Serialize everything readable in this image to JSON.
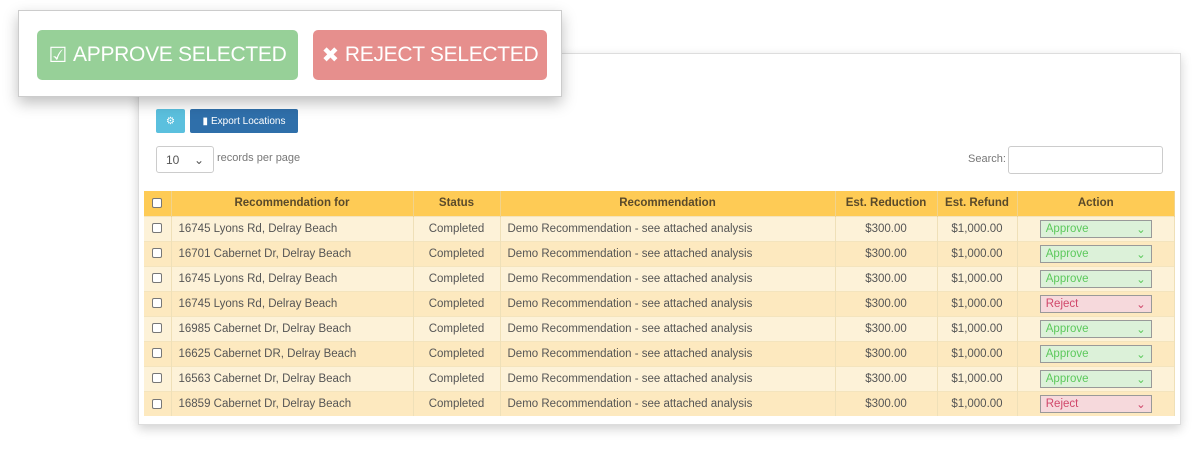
{
  "popup": {
    "approve_label": "APPROVE SELECTED",
    "reject_label": "REJECT SELECTED"
  },
  "toolbar": {
    "export_label": "Export Locations"
  },
  "paging": {
    "per_page": "10",
    "per_page_label": "records per page",
    "search_label": "Search:",
    "search_value": ""
  },
  "table": {
    "headers": [
      "Recommendation for",
      "Status",
      "Recommendation",
      "Est. Reduction",
      "Est. Refund",
      "Action"
    ],
    "rows": [
      {
        "address": "16745 Lyons Rd, Delray Beach",
        "status": "Completed",
        "rec": "Demo Recommendation - see attached analysis",
        "reduction": "$300.00",
        "refund": "$1,000.00",
        "action": "Approve"
      },
      {
        "address": "16701 Cabernet Dr, Delray Beach",
        "status": "Completed",
        "rec": "Demo Recommendation - see attached analysis",
        "reduction": "$300.00",
        "refund": "$1,000.00",
        "action": "Approve"
      },
      {
        "address": "16745 Lyons Rd, Delray Beach",
        "status": "Completed",
        "rec": "Demo Recommendation - see attached analysis",
        "reduction": "$300.00",
        "refund": "$1,000.00",
        "action": "Approve"
      },
      {
        "address": "16745 Lyons Rd, Delray Beach",
        "status": "Completed",
        "rec": "Demo Recommendation - see attached analysis",
        "reduction": "$300.00",
        "refund": "$1,000.00",
        "action": "Reject"
      },
      {
        "address": "16985 Cabernet Dr, Delray Beach",
        "status": "Completed",
        "rec": "Demo Recommendation - see attached analysis",
        "reduction": "$300.00",
        "refund": "$1,000.00",
        "action": "Approve"
      },
      {
        "address": "16625 Cabernet DR, Delray Beach",
        "status": "Completed",
        "rec": "Demo Recommendation - see attached analysis",
        "reduction": "$300.00",
        "refund": "$1,000.00",
        "action": "Approve"
      },
      {
        "address": "16563 Cabernet Dr, Delray Beach",
        "status": "Completed",
        "rec": "Demo Recommendation - see attached analysis",
        "reduction": "$300.00",
        "refund": "$1,000.00",
        "action": "Approve"
      },
      {
        "address": "16859 Cabernet Dr, Delray Beach",
        "status": "Completed",
        "rec": "Demo Recommendation - see attached analysis",
        "reduction": "$300.00",
        "refund": "$1,000.00",
        "action": "Reject"
      }
    ]
  },
  "colors": {
    "approve": "#97d098",
    "reject": "#e68f8d",
    "header": "#fecb55",
    "export": "#2f6faa",
    "settings": "#5bc0de"
  }
}
